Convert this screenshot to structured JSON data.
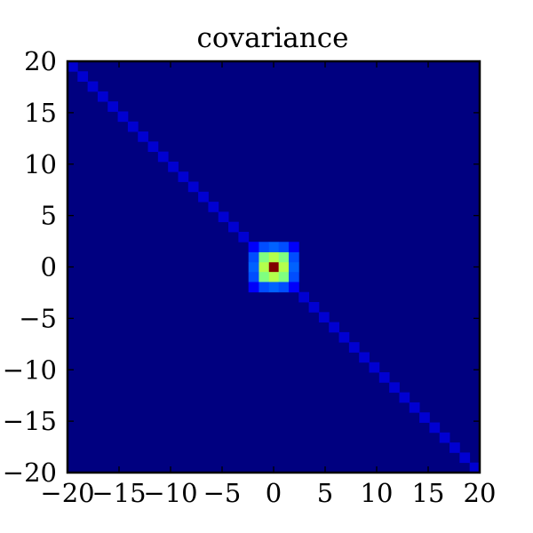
{
  "chart_data": {
    "type": "heatmap",
    "title": "covariance",
    "xlabel": "",
    "ylabel": "",
    "xlim": [
      -20,
      20
    ],
    "ylim": [
      -20,
      20
    ],
    "x_ticks": [
      -20,
      -15,
      -10,
      -5,
      0,
      5,
      10,
      15,
      20
    ],
    "y_ticks": [
      -20,
      -15,
      -10,
      -5,
      0,
      5,
      10,
      15,
      20
    ],
    "x_tick_labels": [
      "−20",
      "−15",
      "−10",
      "−5",
      "0",
      "5",
      "10",
      "15",
      "20"
    ],
    "y_tick_labels": [
      "−20",
      "−15",
      "−10",
      "−5",
      "0",
      "5",
      "10",
      "15",
      "20"
    ],
    "grid": false,
    "colormap": "jet",
    "grid_size": 41,
    "cell_step": 1,
    "value_range": [
      0,
      1
    ],
    "background_value": 0.0,
    "diagonal": "anti-diagonal (top-left to bottom-right)",
    "diagonal_value": 0.08,
    "center_cells": [
      {
        "x": 0,
        "y": 0,
        "value": 1.0
      },
      {
        "x": -1,
        "y": 0,
        "value": 0.55
      },
      {
        "x": 1,
        "y": 0,
        "value": 0.55
      },
      {
        "x": 0,
        "y": 1,
        "value": 0.55
      },
      {
        "x": 0,
        "y": -1,
        "value": 0.55
      },
      {
        "x": -1,
        "y": 1,
        "value": 0.5
      },
      {
        "x": 1,
        "y": 1,
        "value": 0.5
      },
      {
        "x": -1,
        "y": -1,
        "value": 0.5
      },
      {
        "x": 1,
        "y": -1,
        "value": 0.5
      },
      {
        "x": -2,
        "y": 0,
        "value": 0.22
      },
      {
        "x": 2,
        "y": 0,
        "value": 0.22
      },
      {
        "x": 0,
        "y": 2,
        "value": 0.22
      },
      {
        "x": 0,
        "y": -2,
        "value": 0.22
      },
      {
        "x": -2,
        "y": 1,
        "value": 0.2
      },
      {
        "x": -2,
        "y": -1,
        "value": 0.2
      },
      {
        "x": 2,
        "y": 1,
        "value": 0.2
      },
      {
        "x": 2,
        "y": -1,
        "value": 0.2
      },
      {
        "x": -1,
        "y": 2,
        "value": 0.2
      },
      {
        "x": 1,
        "y": 2,
        "value": 0.2
      },
      {
        "x": -1,
        "y": -2,
        "value": 0.2
      },
      {
        "x": 1,
        "y": -2,
        "value": 0.2
      },
      {
        "x": -2,
        "y": 2,
        "value": 0.12
      },
      {
        "x": 2,
        "y": 2,
        "value": 0.12
      },
      {
        "x": -2,
        "y": -2,
        "value": 0.12
      },
      {
        "x": 2,
        "y": -2,
        "value": 0.12
      }
    ]
  }
}
